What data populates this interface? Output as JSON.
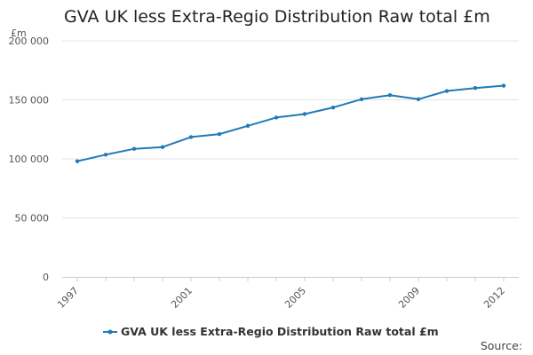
{
  "chart_data": {
    "type": "line",
    "title": "GVA UK less Extra-Regio Distribution Raw total £m",
    "ylabel": "£m",
    "xlabel": "",
    "x": [
      1997,
      1998,
      1999,
      2000,
      2001,
      2002,
      2003,
      2004,
      2005,
      2006,
      2007,
      2008,
      2009,
      2010,
      2011,
      2012
    ],
    "x_tick_labels": [
      "1997",
      "2001",
      "2005",
      "2009",
      "2012"
    ],
    "y_tick_labels": [
      "0",
      "50 000",
      "100 000",
      "150 000",
      "200 000"
    ],
    "ylim": [
      0,
      200000
    ],
    "y_ticks": [
      0,
      50000,
      100000,
      150000,
      200000
    ],
    "series": [
      {
        "name": "GVA UK less Extra-Regio Distribution Raw total £m",
        "color": "#1f7bb6",
        "values": [
          98000,
          103500,
          108500,
          110000,
          118500,
          121000,
          128000,
          135000,
          138000,
          143500,
          150500,
          154000,
          150500,
          157500,
          160000,
          162000
        ]
      }
    ],
    "grid": "horizontal",
    "legend_position": "bottom"
  },
  "footer": {
    "source_label": "Source:"
  }
}
